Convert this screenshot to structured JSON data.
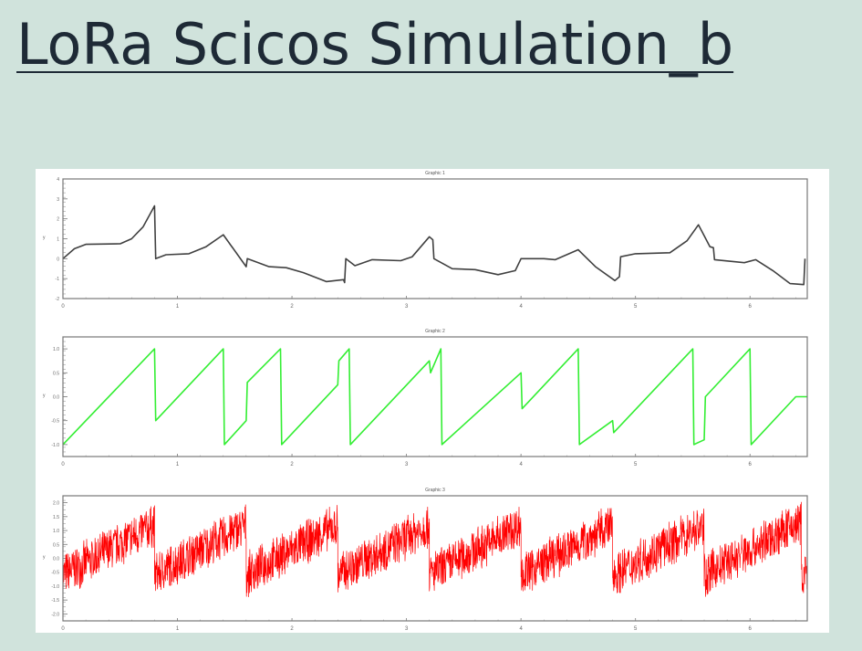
{
  "page": {
    "title": "LoRa Scicos Simulation_b"
  },
  "chart_data": [
    {
      "type": "line",
      "title": "Graphic 1",
      "xlabel": "",
      "ylabel": "y",
      "xlim": [
        0,
        6.5
      ],
      "ylim": [
        -2,
        4
      ],
      "xticks": [
        "0",
        "1",
        "2",
        "3",
        "4",
        "5",
        "6"
      ],
      "yticks": [
        "-2",
        "-1",
        "0",
        "1",
        "2",
        "3",
        "4"
      ],
      "color": "#404040",
      "x": [
        0,
        0.1,
        0.2,
        0.5,
        0.6,
        0.7,
        0.8,
        0.81,
        0.9,
        1.1,
        1.25,
        1.4,
        1.6,
        1.61,
        1.8,
        1.95,
        2.1,
        2.3,
        2.45,
        2.46,
        2.47,
        2.55,
        2.7,
        2.95,
        3.05,
        3.2,
        3.23,
        3.24,
        3.4,
        3.6,
        3.8,
        3.95,
        4.0,
        4.2,
        4.3,
        4.5,
        4.65,
        4.82,
        4.86,
        4.87,
        5.0,
        5.3,
        5.45,
        5.55,
        5.65,
        5.68,
        5.69,
        5.95,
        6.05,
        6.2,
        6.35,
        6.47,
        6.48
      ],
      "y": [
        0,
        0.5,
        0.72,
        0.75,
        1.0,
        1.6,
        2.65,
        0,
        0.2,
        0.25,
        0.6,
        1.2,
        -0.4,
        0,
        -0.4,
        -0.45,
        -0.7,
        -1.15,
        -1.05,
        -1.2,
        0,
        -0.35,
        -0.05,
        -0.1,
        0.1,
        1.1,
        0.95,
        0,
        -0.5,
        -0.55,
        -0.8,
        -0.6,
        0,
        0,
        -0.05,
        0.45,
        -0.4,
        -1.1,
        -0.9,
        0.1,
        0.25,
        0.3,
        0.9,
        1.7,
        0.6,
        0.55,
        -0.05,
        -0.2,
        -0.05,
        -0.6,
        -1.25,
        -1.3,
        0
      ]
    },
    {
      "type": "line",
      "title": "Graphic 2",
      "xlabel": "",
      "ylabel": "y",
      "xlim": [
        0,
        6.5
      ],
      "ylim": [
        -1.25,
        1.25
      ],
      "xticks": [
        "0",
        "1",
        "2",
        "3",
        "4",
        "5",
        "6"
      ],
      "yticks": [
        "-1.0",
        "-0.5",
        "0.0",
        "0.5",
        "1.0"
      ],
      "color": "#33ee33",
      "x": [
        0,
        0.8,
        0.81,
        1.4,
        1.41,
        1.6,
        1.61,
        1.9,
        1.91,
        2.4,
        2.41,
        2.5,
        2.51,
        3.2,
        3.21,
        3.3,
        3.31,
        4.0,
        4.01,
        4.5,
        4.51,
        4.8,
        4.81,
        5.5,
        5.51,
        5.6,
        5.61,
        6.0,
        6.01,
        6.4,
        6.5
      ],
      "y": [
        -1,
        1,
        -0.5,
        1,
        -1,
        -0.5,
        0.3,
        1,
        -1,
        0.25,
        0.75,
        1,
        -1,
        0.75,
        0.5,
        1,
        -1,
        0.5,
        -0.25,
        1,
        -1,
        -0.5,
        -0.75,
        1,
        -1,
        -0.9,
        0,
        1,
        -1,
        0,
        0
      ]
    },
    {
      "type": "line",
      "title": "Graphic 3",
      "xlabel": "",
      "ylabel": "y",
      "xlim": [
        0,
        6.5
      ],
      "ylim": [
        -2.25,
        2.25
      ],
      "xticks": [
        "0",
        "1",
        "2",
        "3",
        "4",
        "5",
        "6"
      ],
      "yticks": [
        "-2.0",
        "-1.5",
        "-1.0",
        "-0.5",
        "0.0",
        "0.5",
        "1.0",
        "1.5",
        "2.0"
      ],
      "color": "#ff0000",
      "noisy_sawtooth": {
        "breaks": [
          0,
          0.8,
          1.6,
          2.4,
          3.2,
          4.0,
          4.8,
          5.6,
          6.45,
          6.5
        ],
        "ramp_start": -0.6,
        "ramp_end": 1.2,
        "noise_amplitude": 0.85
      }
    }
  ]
}
